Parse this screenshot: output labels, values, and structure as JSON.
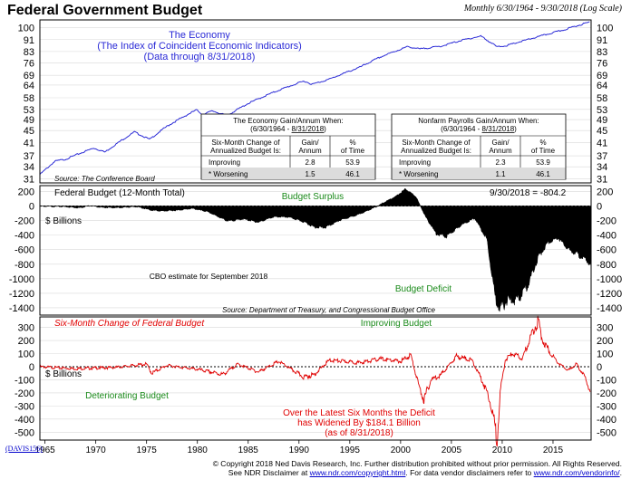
{
  "header": {
    "title": "Federal Government Budget",
    "date_range": "Monthly 6/30/1964 - 9/30/2018 (Log Scale)"
  },
  "colors": {
    "economy_line": "#2a2ad6",
    "deficit_fill": "#000000",
    "change_line": "#e00000",
    "green_label": "#1a8a1a",
    "grid": "#d9d9d9"
  },
  "footer": {
    "badge": "(DAVIS156)",
    "copyright_line": "© Copyright 2018 Ned Davis Research, Inc. Further distribution prohibited without prior permission. All Rights Reserved.",
    "disclaimer_prefix": "See NDR Disclaimer at",
    "disclaimer_link": "www.ndr.com/copyright.html",
    "disclaimer_mid": ". For data vendor disclaimers refer to",
    "vendor_link": "www.ndr.com/vendorinfo/",
    "disclaimer_end": "."
  },
  "chart_data": [
    {
      "type": "line",
      "scale": "log",
      "title": "The Economy",
      "subtitle": "(The Index of Coincident Economic Indicators)",
      "note": "(Data through 8/31/2018)",
      "source": "Source: The Conference Board",
      "yticks": [
        31,
        34,
        37,
        41,
        45,
        49,
        53,
        58,
        64,
        69,
        76,
        83,
        91,
        100
      ],
      "ylim": [
        30,
        106
      ],
      "series": [
        {
          "name": "Coincident Economic Index",
          "x": [
            1964.5,
            1966,
            1967,
            1969.8,
            1970.9,
            1973.8,
            1975.3,
            1977,
            1979.9,
            1980.5,
            1981.5,
            1982.9,
            1985,
            1988,
            1990.5,
            1991.3,
            1993,
            1996,
            1998,
            2000.7,
            2001.9,
            2004,
            2006,
            2007.9,
            2009.5,
            2010.5,
            2012,
            2014,
            2016,
            2018.67
          ],
          "values": [
            32,
            35.5,
            36,
            39.3,
            38.1,
            44.5,
            42,
            46.5,
            52.8,
            51,
            52.4,
            50.5,
            55.5,
            61.5,
            66,
            64.4,
            67,
            73.5,
            79.5,
            86.2,
            84.6,
            86.5,
            90.5,
            93.5,
            86,
            87,
            90,
            94,
            98,
            104.5
          ]
        }
      ],
      "tables": [
        {
          "title": "The Economy Gain/Annum When:",
          "period_start": "(6/30/1964 - ",
          "period_end": "8/31/2018",
          "period_close": ")",
          "col1_header": [
            "Six-Month Change of",
            "Annualized Budget Is:"
          ],
          "col2_header": [
            "Gain/",
            "Annum"
          ],
          "col3_header": [
            "%",
            "of Time"
          ],
          "rows": [
            [
              "Improving",
              "2.8",
              "53.9"
            ],
            [
              "* Worsening",
              "1.5",
              "46.1"
            ]
          ]
        },
        {
          "title": "Nonfarm Payrolls Gain/Annum When:",
          "period_start": "(6/30/1964 - ",
          "period_end": "8/31/2018",
          "period_close": ")",
          "col1_header": [
            "Six-Month Change of",
            "Annualized Budget Is:"
          ],
          "col2_header": [
            "Gain/",
            "Annum"
          ],
          "col3_header": [
            "%",
            "of Time"
          ],
          "rows": [
            [
              "Improving",
              "2.3",
              "53.9"
            ],
            [
              "* Worsening",
              "1.1",
              "46.1"
            ]
          ]
        }
      ]
    },
    {
      "type": "area",
      "title": "Federal Budget (12-Month Total)",
      "latest_label": "9/30/2018 = -804.2",
      "unit_label": "$ Billions",
      "annotations": {
        "surplus": "Budget Surplus",
        "deficit": "Budget Deficit",
        "cbo": "CBO estimate for September 2018"
      },
      "source": "Source: Department of Treasury, and Congressional Budget Office",
      "yticks": [
        200,
        0,
        -200,
        -400,
        -600,
        -800,
        -1000,
        -1200,
        -1400
      ],
      "ylim": [
        -1500,
        280
      ],
      "series": [
        {
          "name": "12-Month Budget Balance ($B)",
          "x": [
            1964.5,
            1967,
            1968.4,
            1969.5,
            1970.5,
            1972,
            1974,
            1975.5,
            1976.5,
            1978,
            1979.5,
            1981,
            1983,
            1984.5,
            1986,
            1987.5,
            1989,
            1990.5,
            1991.5,
            1992.5,
            1994,
            1996,
            1997.5,
            1998.5,
            1999.5,
            2000.5,
            2001.5,
            2002.5,
            2003.5,
            2004.5,
            2006,
            2007.3,
            2008.5,
            2009.3,
            2009.8,
            2010.5,
            2011.5,
            2012.5,
            2013.5,
            2014.5,
            2015.5,
            2016.5,
            2017.5,
            2018.75
          ],
          "values": [
            -5,
            -10,
            -25,
            5,
            -20,
            -25,
            -10,
            -60,
            -70,
            -60,
            -35,
            -80,
            -210,
            -180,
            -225,
            -150,
            -155,
            -220,
            -290,
            -300,
            -200,
            -110,
            -20,
            60,
            130,
            235,
            130,
            -160,
            -380,
            -420,
            -260,
            -170,
            -460,
            -1250,
            -1420,
            -1300,
            -1300,
            -1100,
            -720,
            -500,
            -440,
            -600,
            -670,
            -804
          ]
        }
      ]
    },
    {
      "type": "line",
      "title": "Six-Month Change of Federal Budget",
      "unit_label": "$ Billions",
      "annotations": {
        "improving": "Improving Budget",
        "deteriorating": "Deteriorating Budget",
        "note_lines": [
          "Over the Latest Six Months the Deficit",
          "has Widened By $184.1 Billion",
          "(as of 8/31/2018)"
        ]
      },
      "yticks": [
        300,
        200,
        100,
        0,
        -100,
        -200,
        -300,
        -400,
        -500
      ],
      "ylim": [
        -560,
        380
      ],
      "xticks": [
        1965,
        1970,
        1975,
        1980,
        1985,
        1990,
        1995,
        2000,
        2005,
        2010,
        2015
      ],
      "series": [
        {
          "name": "Six-Month Change ($B)",
          "x": [
            1964.5,
            1968,
            1972,
            1975,
            1975.5,
            1977,
            1980,
            1982.5,
            1984,
            1986,
            1988,
            1990.5,
            1991.5,
            1993,
            1996,
            1998,
            2000,
            2001,
            2001.8,
            2002.3,
            2003,
            2004,
            2005.5,
            2007,
            2008,
            2008.8,
            2009.2,
            2009.5,
            2009.8,
            2010.3,
            2011,
            2012,
            2012.8,
            2013.5,
            2014,
            2014.8,
            2015.5,
            2016.5,
            2017.3,
            2018,
            2018.67
          ],
          "values": [
            0,
            -15,
            -5,
            20,
            -50,
            10,
            -20,
            -60,
            20,
            -40,
            40,
            -80,
            -60,
            50,
            30,
            60,
            40,
            90,
            -150,
            -250,
            -100,
            -60,
            80,
            50,
            -100,
            -250,
            -420,
            -550,
            -200,
            50,
            100,
            60,
            230,
            350,
            200,
            100,
            30,
            -30,
            20,
            -60,
            -184
          ]
        }
      ]
    }
  ]
}
